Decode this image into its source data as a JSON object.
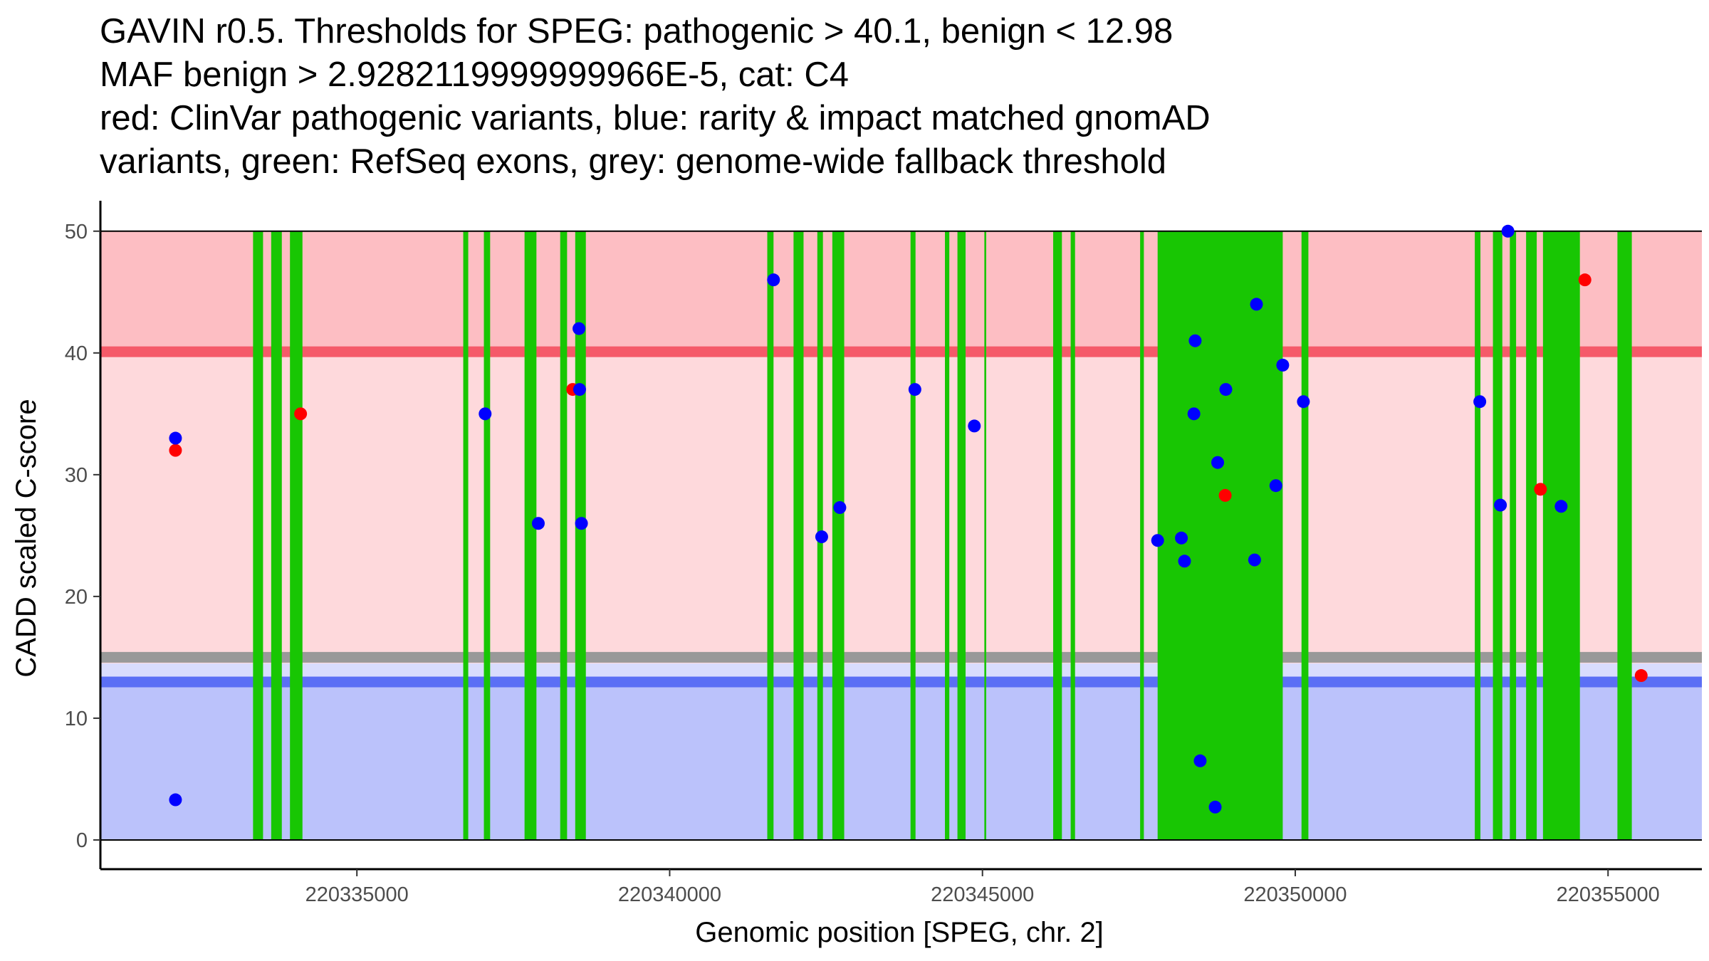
{
  "title_lines": [
    "GAVIN r0.5. Thresholds for SPEG: pathogenic > 40.1, benign < 12.98",
    "MAF benign > 2.9282119999999966E-5, cat: C4",
    "red: ClinVar pathogenic variants, blue: rarity & impact matched gnomAD",
    "variants, green: RefSeq exons, grey: genome-wide fallback threshold"
  ],
  "chart_data": {
    "type": "scatter",
    "xlabel": "Genomic position [SPEG, chr. 2]",
    "ylabel": "CADD scaled C-score",
    "xlim": [
      220330900,
      220356500
    ],
    "ylim": [
      -2.4,
      52.5
    ],
    "x_ticks": [
      220335000,
      220340000,
      220345000,
      220350000,
      220355000
    ],
    "x_tick_labels": [
      "220335000",
      "220340000",
      "220345000",
      "220350000",
      "220355000"
    ],
    "y_ticks": [
      0,
      10,
      20,
      30,
      40,
      50
    ],
    "y_tick_labels": [
      "0",
      "10",
      "20",
      "30",
      "40",
      "50"
    ],
    "bands": [
      {
        "name": "pathogenic-zone",
        "y0": 40.1,
        "y1": 50,
        "color": "#fdbec3"
      },
      {
        "name": "intermediate-zone",
        "y0": 14.5,
        "y1": 40.1,
        "color": "#fed9dc"
      },
      {
        "name": "near-benign-zone",
        "y0": 12.98,
        "y1": 14.5,
        "color": "#d9dcfd"
      },
      {
        "name": "benign-zone",
        "y0": 0,
        "y1": 12.98,
        "color": "#bbc2fb"
      }
    ],
    "threshold_lines": [
      {
        "name": "pathogenic-threshold",
        "y": 40.1,
        "color": "#f55a69"
      },
      {
        "name": "fallback-threshold",
        "y": 15,
        "color": "#999999"
      },
      {
        "name": "benign-threshold",
        "y": 12.98,
        "color": "#5b6ff5"
      }
    ],
    "exons": [
      [
        220333340,
        220333500
      ],
      [
        220333630,
        220333800
      ],
      [
        220333930,
        220334130
      ],
      [
        220336700,
        220336780
      ],
      [
        220337030,
        220337130
      ],
      [
        220337680,
        220337870
      ],
      [
        220338250,
        220338360
      ],
      [
        220338490,
        220338660
      ],
      [
        220341560,
        220341660
      ],
      [
        220341980,
        220342140
      ],
      [
        220342360,
        220342450
      ],
      [
        220342600,
        220342790
      ],
      [
        220343850,
        220343930
      ],
      [
        220344400,
        220344470
      ],
      [
        220344600,
        220344730
      ],
      [
        220345030,
        220345060
      ],
      [
        220346130,
        220346270
      ],
      [
        220346410,
        220346480
      ],
      [
        220347520,
        220347580
      ],
      [
        220347800,
        220349800
      ],
      [
        220350100,
        220350210
      ],
      [
        220352870,
        220352960
      ],
      [
        220353160,
        220353310
      ],
      [
        220353430,
        220353530
      ],
      [
        220353690,
        220353860
      ],
      [
        220353960,
        220354550
      ],
      [
        220355150,
        220355380
      ]
    ],
    "exon_color": "#18c603",
    "series": [
      {
        "name": "ClinVar pathogenic",
        "color": "#ff0000",
        "points": [
          [
            220332100,
            32
          ],
          [
            220334100,
            35
          ],
          [
            220338450,
            37
          ],
          [
            220348880,
            28.3
          ],
          [
            220353920,
            28.8
          ],
          [
            220354630,
            46
          ],
          [
            220355530,
            13.5
          ]
        ]
      },
      {
        "name": "gnomAD matched",
        "color": "#0000ff",
        "points": [
          [
            220332100,
            33
          ],
          [
            220332100,
            3.3
          ],
          [
            220337050,
            35
          ],
          [
            220337900,
            26
          ],
          [
            220338550,
            42
          ],
          [
            220338560,
            37
          ],
          [
            220338590,
            26
          ],
          [
            220341660,
            46
          ],
          [
            220342430,
            24.9
          ],
          [
            220342720,
            27.3
          ],
          [
            220343920,
            37
          ],
          [
            220344870,
            34
          ],
          [
            220347800,
            24.6
          ],
          [
            220348180,
            24.8
          ],
          [
            220348230,
            22.9
          ],
          [
            220348380,
            35
          ],
          [
            220348400,
            41
          ],
          [
            220348480,
            6.5
          ],
          [
            220348720,
            2.7
          ],
          [
            220348760,
            31
          ],
          [
            220348890,
            37
          ],
          [
            220349350,
            23
          ],
          [
            220349380,
            44
          ],
          [
            220349690,
            29.1
          ],
          [
            220349800,
            39
          ],
          [
            220350130,
            36
          ],
          [
            220352950,
            36
          ],
          [
            220353280,
            27.5
          ],
          [
            220353400,
            50
          ],
          [
            220354250,
            27.4
          ]
        ]
      }
    ]
  }
}
